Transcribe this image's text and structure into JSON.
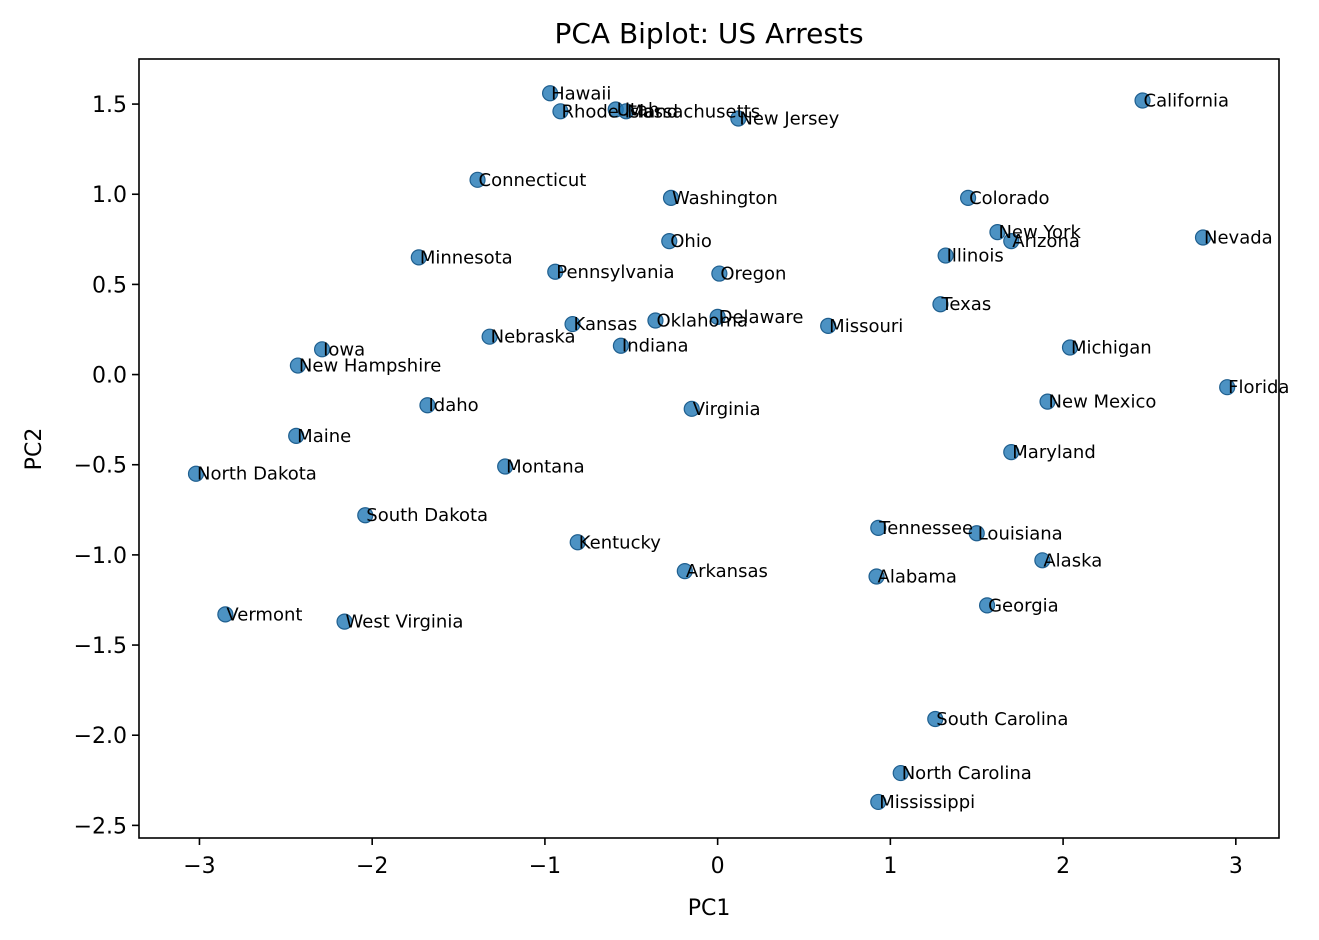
{
  "chart_data": {
    "type": "scatter",
    "title": "PCA Biplot: US Arrests",
    "xlabel": "PC1",
    "ylabel": "PC2",
    "xlim": [
      -3.35,
      3.25
    ],
    "ylim": [
      -2.57,
      1.75
    ],
    "xticks": [
      {
        "value": -3,
        "label": "−3"
      },
      {
        "value": -2,
        "label": "−2"
      },
      {
        "value": -1,
        "label": "−1"
      },
      {
        "value": 0,
        "label": "0"
      },
      {
        "value": 1,
        "label": "1"
      },
      {
        "value": 2,
        "label": "2"
      },
      {
        "value": 3,
        "label": "3"
      }
    ],
    "yticks": [
      {
        "value": 1.5,
        "label": "1.5"
      },
      {
        "value": 1.0,
        "label": "1.0"
      },
      {
        "value": 0.5,
        "label": "0.5"
      },
      {
        "value": 0.0,
        "label": "0.0"
      },
      {
        "value": -0.5,
        "label": "−0.5"
      },
      {
        "value": -1.0,
        "label": "−1.0"
      },
      {
        "value": -1.5,
        "label": "−1.5"
      },
      {
        "value": -2.0,
        "label": "−2.0"
      },
      {
        "value": -2.5,
        "label": "−2.5"
      }
    ],
    "points": [
      {
        "label": "Hawaii",
        "x": -0.97,
        "y": 1.56
      },
      {
        "label": "Rhode Island",
        "x": -0.91,
        "y": 1.46
      },
      {
        "label": "Utah",
        "x": -0.59,
        "y": 1.47
      },
      {
        "label": "Massachusetts",
        "x": -0.53,
        "y": 1.46
      },
      {
        "label": "New Jersey",
        "x": 0.12,
        "y": 1.42
      },
      {
        "label": "California",
        "x": 2.46,
        "y": 1.52
      },
      {
        "label": "Connecticut",
        "x": -1.39,
        "y": 1.08
      },
      {
        "label": "Washington",
        "x": -0.27,
        "y": 0.98
      },
      {
        "label": "Colorado",
        "x": 1.45,
        "y": 0.98
      },
      {
        "label": "New York",
        "x": 1.62,
        "y": 0.79
      },
      {
        "label": "Arizona",
        "x": 1.7,
        "y": 0.74
      },
      {
        "label": "Nevada",
        "x": 2.81,
        "y": 0.76
      },
      {
        "label": "Ohio",
        "x": -0.28,
        "y": 0.74
      },
      {
        "label": "Minnesota",
        "x": -1.73,
        "y": 0.65
      },
      {
        "label": "Illinois",
        "x": 1.32,
        "y": 0.66
      },
      {
        "label": "Pennsylvania",
        "x": -0.94,
        "y": 0.57
      },
      {
        "label": "Oregon",
        "x": 0.01,
        "y": 0.56
      },
      {
        "label": "Texas",
        "x": 1.29,
        "y": 0.39
      },
      {
        "label": "Delaware",
        "x": 0.0,
        "y": 0.32
      },
      {
        "label": "Oklahoma",
        "x": -0.36,
        "y": 0.3
      },
      {
        "label": "Kansas",
        "x": -0.84,
        "y": 0.28
      },
      {
        "label": "Missouri",
        "x": 0.64,
        "y": 0.27
      },
      {
        "label": "Nebraska",
        "x": -1.32,
        "y": 0.21
      },
      {
        "label": "Indiana",
        "x": -0.56,
        "y": 0.16
      },
      {
        "label": "Iowa",
        "x": -2.29,
        "y": 0.14
      },
      {
        "label": "Michigan",
        "x": 2.04,
        "y": 0.15
      },
      {
        "label": "New Hampshire",
        "x": -2.43,
        "y": 0.05
      },
      {
        "label": "Florida",
        "x": 2.95,
        "y": -0.07
      },
      {
        "label": "New Mexico",
        "x": 1.91,
        "y": -0.15
      },
      {
        "label": "Idaho",
        "x": -1.68,
        "y": -0.17
      },
      {
        "label": "Virginia",
        "x": -0.15,
        "y": -0.19
      },
      {
        "label": "Maine",
        "x": -2.44,
        "y": -0.34
      },
      {
        "label": "Maryland",
        "x": 1.7,
        "y": -0.43
      },
      {
        "label": "Montana",
        "x": -1.23,
        "y": -0.51
      },
      {
        "label": "North Dakota",
        "x": -3.02,
        "y": -0.55
      },
      {
        "label": "South Dakota",
        "x": -2.04,
        "y": -0.78
      },
      {
        "label": "Tennessee",
        "x": 0.93,
        "y": -0.85
      },
      {
        "label": "Louisiana",
        "x": 1.5,
        "y": -0.88
      },
      {
        "label": "Kentucky",
        "x": -0.81,
        "y": -0.93
      },
      {
        "label": "Alaska",
        "x": 1.88,
        "y": -1.03
      },
      {
        "label": "Arkansas",
        "x": -0.19,
        "y": -1.09
      },
      {
        "label": "Alabama",
        "x": 0.92,
        "y": -1.12
      },
      {
        "label": "Georgia",
        "x": 1.56,
        "y": -1.28
      },
      {
        "label": "Vermont",
        "x": -2.85,
        "y": -1.33
      },
      {
        "label": "West Virginia",
        "x": -2.16,
        "y": -1.37
      },
      {
        "label": "South Carolina",
        "x": 1.26,
        "y": -1.91
      },
      {
        "label": "North Carolina",
        "x": 1.06,
        "y": -2.21
      },
      {
        "label": "Mississippi",
        "x": 0.93,
        "y": -2.37
      }
    ],
    "grid": false,
    "legend": "none"
  }
}
